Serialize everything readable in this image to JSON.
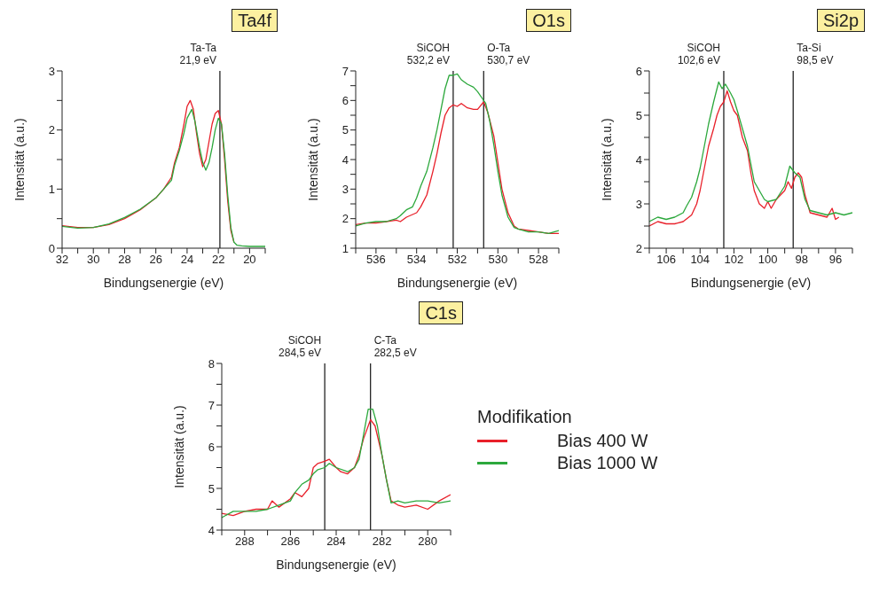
{
  "chart_data": [
    {
      "type": "line",
      "title": "Ta4f",
      "xlabel": "Bindungsenergie (eV)",
      "ylabel": "Intensität (a.u.)",
      "xlim": [
        32,
        19
      ],
      "ylim": [
        0,
        3
      ],
      "xticks": [
        32,
        {
          "value": 31,
          "label": null
        },
        30,
        {
          "value": 29,
          "label": null
        },
        28,
        {
          "value": 27,
          "label": null
        },
        26,
        {
          "value": 25,
          "label": null
        },
        24,
        {
          "value": 23,
          "label": null
        },
        22,
        {
          "value": 21,
          "label": null
        },
        20,
        {
          "value": 19,
          "label": null
        }
      ],
      "yticks": [
        0,
        {
          "value": 0.5,
          "label": null
        },
        1,
        {
          "value": 1.5,
          "label": null
        },
        2,
        {
          "value": 2.5,
          "label": null
        },
        3
      ],
      "ref_lines": [
        {
          "axis": "x",
          "value": 21.9,
          "label": "Ta-Ta 21,9 eV"
        }
      ],
      "series": [
        {
          "color": "#e8202a",
          "x": [
            32,
            31,
            30,
            29,
            28,
            27,
            26,
            25.5,
            25,
            24.8,
            24.5,
            24.2,
            24,
            23.8,
            23.6,
            23.4,
            23.2,
            23,
            22.8,
            22.6,
            22.4,
            22.2,
            22,
            21.8,
            21.6,
            21.4,
            21.2,
            21
          ],
          "values": [
            0.38,
            0.35,
            0.35,
            0.4,
            0.5,
            0.65,
            0.85,
            1.0,
            1.2,
            1.45,
            1.7,
            2.1,
            2.4,
            2.5,
            2.35,
            1.95,
            1.6,
            1.38,
            1.5,
            1.8,
            2.1,
            2.28,
            2.33,
            2.1,
            1.5,
            0.8,
            0.3,
            0.1
          ]
        },
        {
          "color": "#2ca83c",
          "x": [
            32,
            31,
            30,
            29,
            28,
            27,
            26,
            25.5,
            25,
            24.8,
            24.5,
            24.2,
            24,
            23.7,
            23.5,
            23.2,
            23,
            22.8,
            22.6,
            22.4,
            22.2,
            22,
            21.8,
            21.6,
            21.4,
            21.2,
            21,
            20.8,
            20.5,
            20,
            19
          ],
          "values": [
            0.37,
            0.34,
            0.35,
            0.41,
            0.52,
            0.66,
            0.85,
            1.0,
            1.15,
            1.4,
            1.65,
            1.95,
            2.2,
            2.35,
            2.15,
            1.7,
            1.45,
            1.32,
            1.45,
            1.7,
            2.0,
            2.2,
            2.1,
            1.6,
            0.9,
            0.35,
            0.1,
            0.05,
            0.04,
            0.03,
            0.03
          ]
        }
      ]
    },
    {
      "type": "line",
      "title": "O1s",
      "xlabel": "Bindungsenergie (eV)",
      "ylabel": "Intensität (a.u.)",
      "xlim": [
        537,
        527
      ],
      "ylim": [
        1,
        7
      ],
      "xticks": [
        {
          "value": 537,
          "label": null
        },
        536,
        {
          "value": 535,
          "label": null
        },
        534,
        {
          "value": 533,
          "label": null
        },
        532,
        {
          "value": 531,
          "label": null
        },
        530,
        {
          "value": 529,
          "label": null
        },
        528,
        {
          "value": 527,
          "label": null
        }
      ],
      "yticks": [
        1,
        {
          "value": 1.5,
          "label": null
        },
        2,
        {
          "value": 2.5,
          "label": null
        },
        3,
        {
          "value": 3.5,
          "label": null
        },
        4,
        {
          "value": 4.5,
          "label": null
        },
        5,
        {
          "value": 5.5,
          "label": null
        },
        6,
        {
          "value": 6.5,
          "label": null
        },
        7
      ],
      "ref_lines": [
        {
          "axis": "x",
          "value": 532.2,
          "label": "SiCOH 532,2 eV"
        },
        {
          "axis": "x",
          "value": 530.7,
          "label": "O-Ta 530,7 eV"
        }
      ],
      "series": [
        {
          "color": "#e8202a",
          "x": [
            537,
            536.5,
            536,
            535.5,
            535,
            534.8,
            534.5,
            534,
            533.8,
            533.5,
            533.2,
            533,
            532.8,
            532.6,
            532.4,
            532.2,
            532,
            531.8,
            531.5,
            531.2,
            531,
            530.7,
            530.5,
            530.2,
            530,
            529.8,
            529.5,
            529.2,
            529,
            528.5,
            528,
            527.5,
            527
          ],
          "values": [
            1.8,
            1.85,
            1.85,
            1.9,
            1.95,
            1.9,
            2.05,
            2.2,
            2.4,
            2.8,
            3.6,
            4.2,
            4.9,
            5.5,
            5.75,
            5.85,
            5.8,
            5.9,
            5.75,
            5.7,
            5.7,
            5.95,
            5.6,
            4.8,
            3.9,
            3.0,
            2.2,
            1.75,
            1.65,
            1.6,
            1.55,
            1.5,
            1.5
          ]
        },
        {
          "color": "#2ca83c",
          "x": [
            537,
            536.5,
            536,
            535.5,
            535,
            534.8,
            534.5,
            534.2,
            534,
            533.8,
            533.5,
            533.2,
            533,
            532.8,
            532.6,
            532.4,
            532.2,
            532,
            531.8,
            531.5,
            531.2,
            531,
            530.8,
            530.6,
            530.4,
            530.2,
            530,
            529.8,
            529.5,
            529.2,
            529,
            528.5,
            528,
            527.5,
            527
          ],
          "values": [
            1.75,
            1.85,
            1.9,
            1.9,
            2.0,
            2.1,
            2.3,
            2.4,
            2.7,
            3.1,
            3.6,
            4.4,
            5.0,
            5.7,
            6.4,
            6.85,
            6.85,
            6.9,
            6.7,
            6.55,
            6.45,
            6.3,
            6.1,
            5.9,
            5.3,
            4.5,
            3.6,
            2.8,
            2.05,
            1.7,
            1.65,
            1.55,
            1.55,
            1.5,
            1.6
          ]
        }
      ]
    },
    {
      "type": "line",
      "title": "Si2p",
      "xlabel": "Bindungsenergie (eV)",
      "ylabel": "Intensität (a.u.)",
      "xlim": [
        107,
        95
      ],
      "ylim": [
        2,
        6
      ],
      "xticks": [
        {
          "value": 107,
          "label": null
        },
        106,
        {
          "value": 105,
          "label": null
        },
        104,
        {
          "value": 103,
          "label": null
        },
        102,
        {
          "value": 101,
          "label": null
        },
        100,
        {
          "value": 99,
          "label": null
        },
        98,
        {
          "value": 97,
          "label": null
        },
        96,
        {
          "value": 95,
          "label": null
        }
      ],
      "yticks": [
        2,
        {
          "value": 2.5,
          "label": null
        },
        3,
        {
          "value": 3.5,
          "label": null
        },
        4,
        {
          "value": 4.5,
          "label": null
        },
        5,
        {
          "value": 5.5,
          "label": null
        },
        6
      ],
      "ref_lines": [
        {
          "axis": "x",
          "value": 102.6,
          "label": "SiCOH 102,6 eV"
        },
        {
          "axis": "x",
          "value": 98.5,
          "label": "Ta-Si 98,5 eV"
        }
      ],
      "series": [
        {
          "color": "#e8202a",
          "x": [
            107,
            106.5,
            106,
            105.5,
            105,
            104.5,
            104.2,
            104,
            103.8,
            103.5,
            103.2,
            103,
            102.8,
            102.6,
            102.4,
            102.2,
            102,
            101.8,
            101.5,
            101.2,
            101,
            100.8,
            100.5,
            100.2,
            100,
            99.8,
            99.5,
            99,
            98.8,
            98.6,
            98.4,
            98.2,
            98,
            97.8,
            97.5,
            97,
            96.5,
            96.2,
            96,
            95.8
          ],
          "values": [
            2.5,
            2.6,
            2.55,
            2.55,
            2.6,
            2.75,
            3.0,
            3.3,
            3.7,
            4.3,
            4.7,
            5.0,
            5.2,
            5.3,
            5.55,
            5.3,
            5.1,
            5.0,
            4.5,
            4.2,
            3.7,
            3.3,
            3.0,
            2.9,
            3.05,
            2.9,
            3.1,
            3.3,
            3.5,
            3.35,
            3.6,
            3.7,
            3.6,
            3.2,
            2.8,
            2.75,
            2.7,
            2.9,
            2.65,
            2.7
          ]
        },
        {
          "color": "#2ca83c",
          "x": [
            107,
            106.5,
            106,
            105.5,
            105,
            104.8,
            104.5,
            104.2,
            104,
            103.8,
            103.5,
            103.2,
            102.9,
            102.7,
            102.5,
            102.2,
            102,
            101.8,
            101.5,
            101.2,
            101,
            100.8,
            100.5,
            100.2,
            100,
            99.5,
            99,
            98.7,
            98.4,
            98.1,
            97.8,
            97.5,
            97,
            96.5,
            96,
            95.5,
            95
          ],
          "values": [
            2.6,
            2.7,
            2.65,
            2.7,
            2.8,
            2.95,
            3.15,
            3.5,
            3.8,
            4.2,
            4.8,
            5.3,
            5.75,
            5.6,
            5.7,
            5.5,
            5.35,
            5.1,
            4.7,
            4.3,
            3.9,
            3.5,
            3.3,
            3.1,
            3.05,
            3.1,
            3.4,
            3.85,
            3.7,
            3.6,
            3.1,
            2.85,
            2.8,
            2.75,
            2.8,
            2.75,
            2.8
          ]
        }
      ]
    },
    {
      "type": "line",
      "title": "C1s",
      "xlabel": "Bindungsenergie (eV)",
      "ylabel": "Intensität (a.u.)",
      "xlim": [
        289,
        279
      ],
      "ylim": [
        4,
        8
      ],
      "legend": "right",
      "legend_title": "Modifikation",
      "xticks": [
        {
          "value": 289,
          "label": null
        },
        288,
        {
          "value": 287,
          "label": null
        },
        286,
        {
          "value": 285,
          "label": null
        },
        284,
        {
          "value": 283,
          "label": null
        },
        282,
        {
          "value": 281,
          "label": null
        },
        280,
        {
          "value": 279,
          "label": null
        }
      ],
      "yticks": [
        4,
        {
          "value": 4.5,
          "label": null
        },
        5,
        {
          "value": 5.5,
          "label": null
        },
        6,
        {
          "value": 6.5,
          "label": null
        },
        7,
        {
          "value": 7.5,
          "label": null
        },
        8
      ],
      "ref_lines": [
        {
          "axis": "x",
          "value": 284.5,
          "label": "SiCOH 284,5 eV"
        },
        {
          "axis": "x",
          "value": 282.5,
          "label": "C-Ta 282,5 eV"
        }
      ],
      "series": [
        {
          "name": "Bias 400 W",
          "color": "#e8202a",
          "x": [
            289,
            288.5,
            288,
            287.5,
            287,
            286.8,
            286.5,
            286,
            285.8,
            285.5,
            285.2,
            285,
            284.8,
            284.5,
            284.3,
            284,
            283.8,
            283.5,
            283.2,
            283,
            282.8,
            282.5,
            282.3,
            282,
            281.8,
            281.6,
            281.3,
            281,
            280.5,
            280,
            279.5,
            279
          ],
          "values": [
            4.4,
            4.35,
            4.45,
            4.5,
            4.5,
            4.7,
            4.55,
            4.75,
            4.9,
            4.8,
            5.0,
            5.5,
            5.6,
            5.65,
            5.7,
            5.5,
            5.4,
            5.35,
            5.5,
            5.8,
            6.2,
            6.65,
            6.5,
            5.8,
            5.2,
            4.7,
            4.6,
            4.55,
            4.6,
            4.5,
            4.7,
            4.85
          ]
        },
        {
          "name": "Bias 1000 W",
          "color": "#2ca83c",
          "x": [
            289,
            288.5,
            288,
            287.5,
            287,
            286.5,
            286,
            285.8,
            285.5,
            285.2,
            285,
            284.8,
            284.5,
            284.3,
            284,
            283.5,
            283.2,
            283,
            282.8,
            282.6,
            282.4,
            282.2,
            282,
            281.8,
            281.6,
            281.3,
            281,
            280.5,
            280,
            279.5,
            279
          ],
          "values": [
            4.3,
            4.45,
            4.45,
            4.45,
            4.5,
            4.6,
            4.7,
            4.9,
            5.1,
            5.2,
            5.35,
            5.45,
            5.5,
            5.6,
            5.5,
            5.4,
            5.5,
            5.7,
            6.3,
            6.9,
            6.9,
            6.5,
            5.8,
            5.2,
            4.65,
            4.7,
            4.65,
            4.7,
            4.7,
            4.65,
            4.7
          ]
        }
      ]
    }
  ]
}
